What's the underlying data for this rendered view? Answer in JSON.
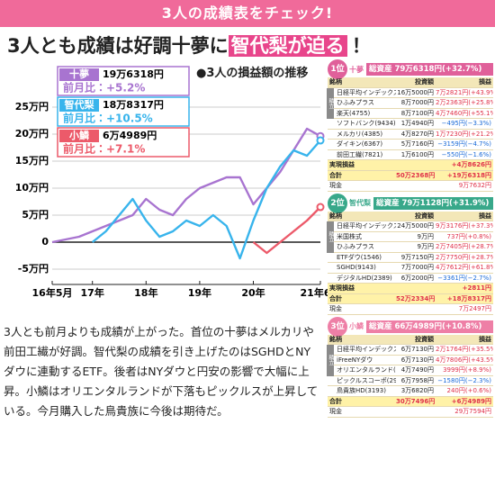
{
  "header": {
    "title": "3人の成績表をチェック!",
    "headline": [
      "3人とも成績は好調十夢に",
      "智代梨が迫る",
      "！"
    ]
  },
  "chart_data": {
    "type": "line",
    "title": "●3人の損益額の推移",
    "categories": [
      "16年5月",
      null,
      null,
      "17年",
      null,
      null,
      null,
      "18年",
      null,
      null,
      null,
      "19年",
      null,
      null,
      null,
      "20年",
      null,
      null,
      null,
      null,
      "21年6月"
    ],
    "series": [
      {
        "name": "十夢",
        "color": "#a874d0",
        "total": "19万6318円",
        "change": "前月比：+5.2%",
        "values": [
          0,
          0.5,
          1,
          2,
          3,
          4,
          5,
          8,
          6,
          5,
          8,
          10,
          11,
          12,
          12,
          7,
          10,
          13,
          17,
          21,
          19.6318
        ]
      },
      {
        "name": "智代梨",
        "color": "#38b4ec",
        "total": "18万8317円",
        "change": "前月比：+10.5%",
        "values": [
          null,
          null,
          null,
          0,
          2,
          5,
          8,
          4,
          1,
          2,
          4,
          3,
          5,
          3,
          -3,
          4,
          10,
          14,
          17,
          16,
          18.8317
        ]
      },
      {
        "name": "小鱗",
        "color": "#ec5a6a",
        "total": "6万4989円",
        "change": "前月比：+7.1%",
        "values": [
          null,
          null,
          null,
          null,
          null,
          null,
          null,
          null,
          null,
          null,
          null,
          null,
          null,
          null,
          null,
          0,
          -2,
          0,
          2,
          4,
          6.4989
        ]
      }
    ],
    "ylim": [
      -6.5,
      26.5
    ],
    "yticks": [
      {
        "value": -5,
        "label": "-5万円"
      },
      0,
      {
        "value": 5,
        "label": "5万円"
      },
      {
        "value": 10,
        "label": "10万円"
      },
      {
        "value": 15,
        "label": "15万円"
      },
      {
        "value": 20,
        "label": "20万円"
      },
      {
        "value": 25,
        "label": "25万円"
      }
    ],
    "grid": true
  },
  "body_text": "3人とも前月よりも成績が上がった。首位の十夢はメルカリや前田工繊が好調。智代梨の成績を引き上げたのはSGHDとNYダウに連動するETF。後者はNYダウと円安の影響で大幅に上昇。小鱗はオリエンタルランドが下落もピックルスが上昇している。今月購入した鳥貴族に今後は期待だ。",
  "portfolios": [
    {
      "rank": "1位",
      "name": "十夢",
      "total_assets": "総資産 79万6318円(+32.7%)",
      "group_label": "積立",
      "columns": [
        "銘柄",
        "投資額",
        "損益"
      ],
      "rows": [
        [
          "日経平均インデックス",
          "16万5000円",
          "7万2821円(+43.9%)"
        ],
        [
          "ひふみプラス",
          "8万7000円",
          "2万2363円(+25.8%)"
        ],
        [
          "楽天(4755)",
          "8万7100円",
          "4万7460円(+55.1%)"
        ],
        [
          "ソフトバンク(9434)",
          "1万4940円",
          "−495円(−3.3%)"
        ],
        [
          "メルカリ(4385)",
          "4万8270円",
          "1万7230円(+21.2%)"
        ],
        [
          "ダイキン(6367)",
          "5万7160円",
          "−3159円(−4.7%)"
        ],
        [
          "前田工繊(7821)",
          "1万6100円",
          "−550円(−1.6%)"
        ]
      ],
      "realized": [
        "実現損益",
        "+4万8626円"
      ],
      "total": [
        "合計",
        "50万2368円",
        "+19万6318円"
      ],
      "cash": [
        "現金",
        "9万7632円"
      ]
    },
    {
      "rank": "2位",
      "name": "智代梨",
      "total_assets": "総資産 79万1128円(+31.9%)",
      "group_label": "積立",
      "columns": [
        "銘柄",
        "投資額",
        "損益"
      ],
      "rows": [
        [
          "日経平均インデックス",
          "24万5000円",
          "9万3176円(+37.3%)"
        ],
        [
          "米国株式",
          "9万円",
          "737円(+0.8%)"
        ],
        [
          "ひふみプラス",
          "9万円",
          "2万7405円(+28.7%)"
        ],
        [
          "ETFダウ(1546)",
          "9万7150円",
          "2万7750円(+28.7%)"
        ],
        [
          "SGHD(9143)",
          "7万7000円",
          "4万7612円(+61.8%)"
        ],
        [
          "デジタルHD(2389)",
          "6万2000円",
          "−3361円(−2.7%)"
        ]
      ],
      "realized": [
        "実現損益",
        "+2811円"
      ],
      "total": [
        "合計",
        "52万2334円",
        "+18万8317円"
      ],
      "cash": [
        "現金",
        "7万2497円"
      ]
    },
    {
      "rank": "3位",
      "name": "小鱗",
      "total_assets": "総資産 66万4989円(+10.8%)",
      "group_label": "積立",
      "columns": [
        "銘柄",
        "投資額",
        "損益"
      ],
      "rows": [
        [
          "日経平均インデックス",
          "6万7130円",
          "2万1764円(+35.5%)"
        ],
        [
          "iFreeNYダウ",
          "6万7130円",
          "4万7806円(+43.5%)"
        ],
        [
          "オリエンタルランド(4661)",
          "4万7490円",
          "3999円(+8.9%)"
        ],
        [
          "ピックルスコーポ(2925)",
          "6万7958円",
          "−1580円(−2.3%)"
        ],
        [
          "鳥貴族HD(3193)",
          "3万6820円",
          "240円(+0.6%)"
        ]
      ],
      "total": [
        "合計",
        "30万7496円",
        "+6万4989円"
      ],
      "cash": [
        "現金",
        "29万7594円"
      ]
    }
  ]
}
